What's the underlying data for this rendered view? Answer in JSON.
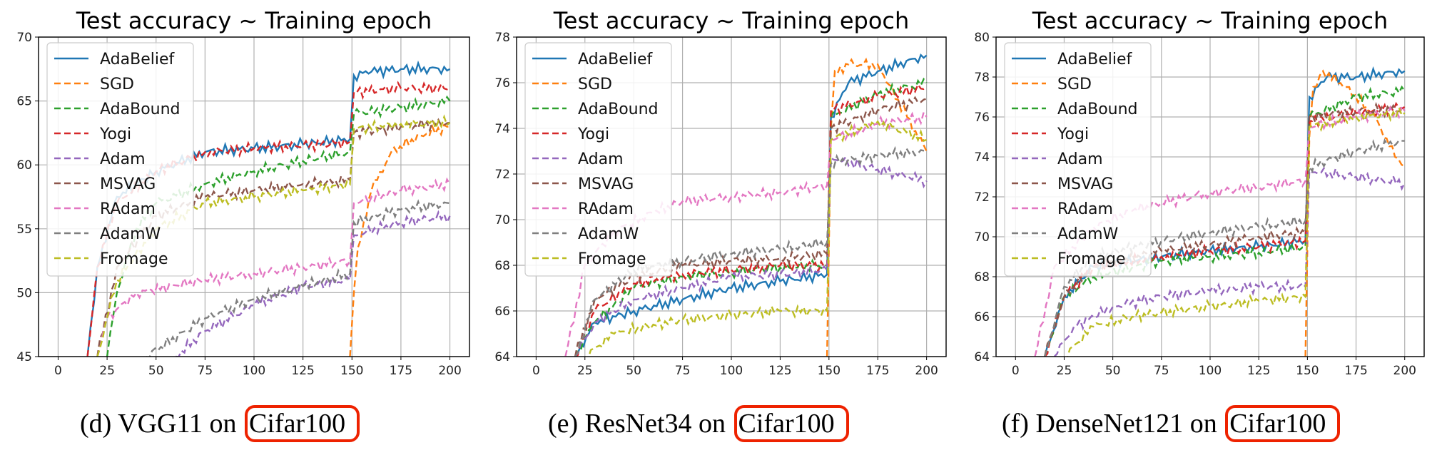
{
  "colors": {
    "AdaBelief": "#1f77b4",
    "SGD": "#ff7f0e",
    "AdaBound": "#2ca02c",
    "Yogi": "#d62728",
    "Adam": "#9467bd",
    "MSVAG": "#8c564b",
    "RAdam": "#e377c2",
    "AdamW": "#7f7f7f",
    "Fromage": "#bcbd22",
    "caption_highlight": "#ee2200"
  },
  "captions": [
    {
      "prefix": "(d)  VGG11 on",
      "highlight": "Cifar100"
    },
    {
      "prefix": "(e)  ResNet34 on",
      "highlight": "Cifar100"
    },
    {
      "prefix": "(f)  DenseNet121 on",
      "highlight": "Cifar100"
    }
  ],
  "chart_data": [
    {
      "type": "line",
      "title": "Test accuracy ~ Training epoch",
      "xlim": [
        -10,
        210
      ],
      "ylim": [
        45,
        70
      ],
      "xticks": [
        0,
        25,
        50,
        75,
        100,
        125,
        150,
        175,
        200
      ],
      "yticks": [
        45,
        50,
        55,
        60,
        65,
        70
      ],
      "grid": true,
      "legend_position": "upper-left",
      "series": [
        {
          "name": "AdaBelief",
          "style": "solid",
          "x": [
            15,
            20,
            30,
            50,
            75,
            100,
            125,
            149,
            151,
            160,
            175,
            200
          ],
          "y": [
            45,
            52,
            57.5,
            59.5,
            61,
            61.3,
            61.6,
            62,
            67,
            67.3,
            67.5,
            67.5
          ]
        },
        {
          "name": "SGD",
          "style": "dashed",
          "x": [
            149,
            151,
            153,
            156,
            160,
            170,
            185,
            200
          ],
          "y": [
            45,
            50,
            53.5,
            55.5,
            58,
            61,
            62.3,
            63
          ]
        },
        {
          "name": "AdaBound",
          "style": "dashed",
          "x": [
            25,
            30,
            40,
            50,
            75,
            100,
            125,
            149,
            151,
            175,
            200
          ],
          "y": [
            45,
            50,
            55,
            57,
            58.5,
            59.5,
            60.3,
            61,
            64,
            64.5,
            65
          ]
        },
        {
          "name": "Yogi",
          "style": "dashed",
          "x": [
            15,
            20,
            30,
            50,
            75,
            100,
            125,
            149,
            151,
            175,
            200
          ],
          "y": [
            45,
            52,
            57,
            59.5,
            61,
            61.3,
            61.5,
            61.8,
            65.7,
            66,
            66
          ]
        },
        {
          "name": "Adam",
          "style": "dashed",
          "x": [
            60,
            75,
            100,
            125,
            149,
            151,
            175,
            200
          ],
          "y": [
            45,
            47,
            49,
            50.5,
            51,
            54.5,
            55.5,
            56
          ]
        },
        {
          "name": "MSVAG",
          "style": "dashed",
          "x": [
            20,
            30,
            50,
            75,
            100,
            125,
            149,
            151,
            175,
            200
          ],
          "y": [
            45,
            52,
            56,
            57.5,
            58,
            58.5,
            58.8,
            62.5,
            63,
            63.3
          ]
        },
        {
          "name": "RAdam",
          "style": "dashed",
          "x": [
            20,
            25,
            40,
            75,
            100,
            125,
            149,
            151,
            175,
            200
          ],
          "y": [
            45,
            48,
            50,
            51,
            51.5,
            52,
            52.5,
            57,
            58,
            58.5
          ]
        },
        {
          "name": "AdamW",
          "style": "dashed",
          "x": [
            45,
            75,
            100,
            125,
            149,
            151,
            175,
            200
          ],
          "y": [
            45,
            48,
            49.5,
            50.5,
            51.5,
            55.5,
            56.5,
            57
          ]
        },
        {
          "name": "Fromage",
          "style": "dashed",
          "x": [
            20,
            30,
            50,
            75,
            100,
            125,
            149,
            151,
            175,
            200
          ],
          "y": [
            45,
            51,
            55,
            57,
            57.5,
            58,
            58.5,
            62.8,
            63.2,
            63.3
          ]
        }
      ]
    },
    {
      "type": "line",
      "title": "Test accuracy ~ Training epoch",
      "xlim": [
        -10,
        210
      ],
      "ylim": [
        64,
        78
      ],
      "xticks": [
        0,
        25,
        50,
        75,
        100,
        125,
        150,
        175,
        200
      ],
      "yticks": [
        64,
        66,
        68,
        70,
        72,
        74,
        76,
        78
      ],
      "grid": true,
      "legend_position": "upper-left",
      "series": [
        {
          "name": "AdaBelief",
          "style": "solid",
          "x": [
            20,
            30,
            50,
            75,
            100,
            125,
            149,
            151,
            160,
            175,
            200
          ],
          "y": [
            64,
            65.5,
            66,
            66.5,
            67,
            67.3,
            67.6,
            74.5,
            76,
            76.5,
            77.2
          ]
        },
        {
          "name": "SGD",
          "style": "dashed",
          "x": [
            149,
            151,
            153,
            160,
            175,
            190,
            200
          ],
          "y": [
            64,
            74,
            76.5,
            76.8,
            76.8,
            74.5,
            73
          ]
        },
        {
          "name": "AdaBound",
          "style": "dashed",
          "x": [
            20,
            30,
            50,
            75,
            100,
            125,
            149,
            151,
            175,
            200
          ],
          "y": [
            64,
            65.5,
            67,
            67.5,
            67.7,
            67.9,
            68,
            74.5,
            75.5,
            76
          ]
        },
        {
          "name": "Yogi",
          "style": "dashed",
          "x": [
            20,
            30,
            50,
            75,
            100,
            125,
            149,
            151,
            175,
            200
          ],
          "y": [
            64,
            66,
            67.2,
            67.6,
            67.8,
            68,
            68,
            74.8,
            75.4,
            75.8
          ]
        },
        {
          "name": "Adam",
          "style": "dashed",
          "x": [
            20,
            30,
            50,
            75,
            100,
            125,
            149,
            151,
            175,
            200
          ],
          "y": [
            64,
            65.5,
            66.5,
            67,
            67.5,
            67.6,
            67.8,
            72.7,
            72.2,
            71.7
          ]
        },
        {
          "name": "MSVAG",
          "style": "dashed",
          "x": [
            20,
            30,
            50,
            75,
            100,
            125,
            149,
            151,
            175,
            200
          ],
          "y": [
            64,
            66.5,
            67.5,
            68,
            68.2,
            68.3,
            68.5,
            74,
            74.8,
            75.3
          ]
        },
        {
          "name": "RAdam",
          "style": "dashed",
          "x": [
            15,
            25,
            40,
            60,
            75,
            100,
            125,
            149,
            151,
            175,
            200
          ],
          "y": [
            64,
            68,
            69.5,
            70.3,
            70.8,
            71,
            71.2,
            71.5,
            73.5,
            74.2,
            74.5
          ]
        },
        {
          "name": "AdamW",
          "style": "dashed",
          "x": [
            20,
            30,
            50,
            75,
            100,
            125,
            149,
            151,
            175,
            200
          ],
          "y": [
            64,
            66.5,
            67.8,
            68.2,
            68.5,
            68.7,
            69,
            72.5,
            72.8,
            73
          ]
        },
        {
          "name": "Fromage",
          "style": "dashed",
          "x": [
            25,
            40,
            60,
            75,
            100,
            125,
            149,
            151,
            175,
            200
          ],
          "y": [
            64,
            65,
            65.4,
            65.6,
            65.8,
            66,
            66,
            73.5,
            74.3,
            73.5
          ]
        }
      ]
    },
    {
      "type": "line",
      "title": "Test accuracy ~ Training epoch",
      "xlim": [
        -10,
        210
      ],
      "ylim": [
        64,
        80
      ],
      "xticks": [
        0,
        25,
        50,
        75,
        100,
        125,
        150,
        175,
        200
      ],
      "yticks": [
        64,
        66,
        68,
        70,
        72,
        74,
        76,
        78,
        80
      ],
      "grid": true,
      "legend_position": "upper-left",
      "series": [
        {
          "name": "AdaBelief",
          "style": "solid",
          "x": [
            15,
            25,
            40,
            75,
            100,
            125,
            149,
            151,
            160,
            175,
            200
          ],
          "y": [
            64,
            67,
            68.5,
            69,
            69.3,
            69.5,
            69.8,
            77,
            78,
            78,
            78.3
          ]
        },
        {
          "name": "SGD",
          "style": "dashed",
          "x": [
            149,
            151,
            153,
            158,
            170,
            185,
            195,
            200
          ],
          "y": [
            64,
            75,
            77.5,
            78.3,
            77.5,
            76,
            74,
            73.5
          ]
        },
        {
          "name": "AdaBound",
          "style": "dashed",
          "x": [
            15,
            25,
            40,
            75,
            100,
            125,
            149,
            151,
            175,
            200
          ],
          "y": [
            64,
            67,
            68,
            68.8,
            69,
            69.2,
            69.5,
            76,
            77,
            77.3
          ]
        },
        {
          "name": "Yogi",
          "style": "dashed",
          "x": [
            15,
            25,
            40,
            75,
            100,
            125,
            149,
            151,
            175,
            200
          ],
          "y": [
            64,
            67,
            68.5,
            69,
            69.3,
            69.5,
            69.8,
            75.8,
            76.2,
            76.5
          ]
        },
        {
          "name": "Adam",
          "style": "dashed",
          "x": [
            20,
            30,
            50,
            75,
            100,
            125,
            149,
            151,
            175,
            200
          ],
          "y": [
            64,
            65.5,
            66.5,
            67,
            67.3,
            67.5,
            67.5,
            73.3,
            73,
            72.7
          ]
        },
        {
          "name": "MSVAG",
          "style": "dashed",
          "x": [
            15,
            25,
            40,
            75,
            100,
            125,
            149,
            151,
            175,
            200
          ],
          "y": [
            64,
            67,
            68.5,
            69.3,
            69.6,
            70,
            70.2,
            76,
            76.3,
            76.4
          ]
        },
        {
          "name": "RAdam",
          "style": "dashed",
          "x": [
            10,
            20,
            40,
            60,
            75,
            100,
            125,
            149,
            151,
            175,
            200
          ],
          "y": [
            64,
            68.5,
            70.5,
            71.3,
            71.7,
            72.2,
            72.5,
            72.8,
            75.5,
            76,
            76.3
          ]
        },
        {
          "name": "AdamW",
          "style": "dashed",
          "x": [
            15,
            25,
            40,
            75,
            100,
            125,
            149,
            151,
            175,
            200
          ],
          "y": [
            64,
            67.5,
            69,
            69.8,
            70.2,
            70.5,
            70.8,
            73.5,
            74.3,
            74.8
          ]
        },
        {
          "name": "Fromage",
          "style": "dashed",
          "x": [
            25,
            40,
            60,
            75,
            100,
            125,
            149,
            151,
            175,
            200
          ],
          "y": [
            64,
            65.5,
            66,
            66.2,
            66.5,
            66.8,
            67,
            75.5,
            76,
            76.2
          ]
        }
      ]
    }
  ]
}
